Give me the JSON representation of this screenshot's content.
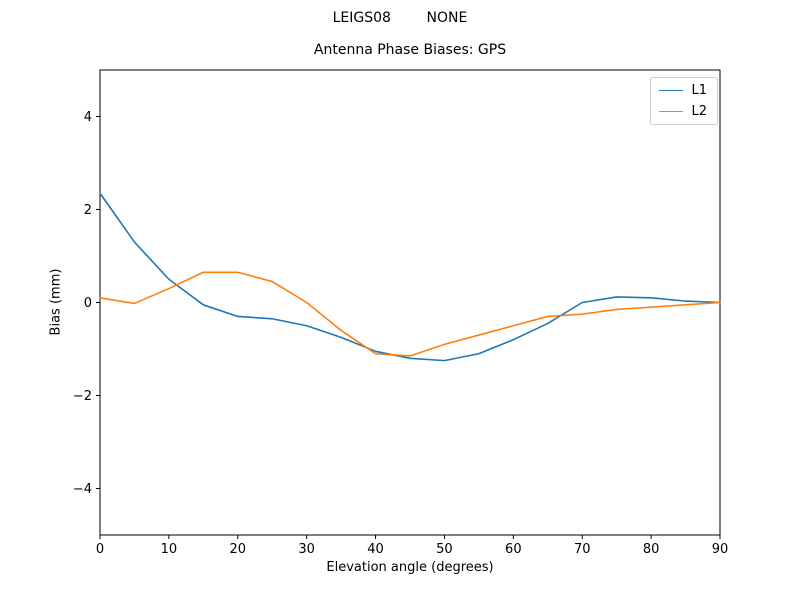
{
  "chart_data": {
    "type": "line",
    "suptitle": "LEIGS08        NONE",
    "title": "Antenna Phase Biases: GPS",
    "xlabel": "Elevation angle (degrees)",
    "ylabel": "Bias (mm)",
    "xlim": [
      0,
      90
    ],
    "ylim": [
      -5,
      5
    ],
    "xticks": [
      0,
      10,
      20,
      30,
      40,
      50,
      60,
      70,
      80,
      90
    ],
    "yticks": [
      -4,
      -2,
      0,
      2,
      4
    ],
    "grid": false,
    "legend_position": "upper right",
    "x": [
      0,
      5,
      10,
      15,
      20,
      25,
      30,
      35,
      40,
      45,
      50,
      55,
      60,
      65,
      70,
      75,
      80,
      85,
      90
    ],
    "series": [
      {
        "name": "L1",
        "color": "#1f77b4",
        "values": [
          2.35,
          1.3,
          0.5,
          -0.05,
          -0.3,
          -0.35,
          -0.5,
          -0.75,
          -1.05,
          -1.2,
          -1.25,
          -1.1,
          -0.8,
          -0.45,
          0.0,
          0.12,
          0.1,
          0.03,
          0.0
        ]
      },
      {
        "name": "L2",
        "color": "#ff7f0e",
        "values": [
          0.1,
          -0.02,
          0.3,
          0.65,
          0.65,
          0.45,
          0.0,
          -0.6,
          -1.1,
          -1.15,
          -0.9,
          -0.7,
          -0.5,
          -0.3,
          -0.25,
          -0.15,
          -0.1,
          -0.05,
          0.0
        ]
      }
    ]
  }
}
